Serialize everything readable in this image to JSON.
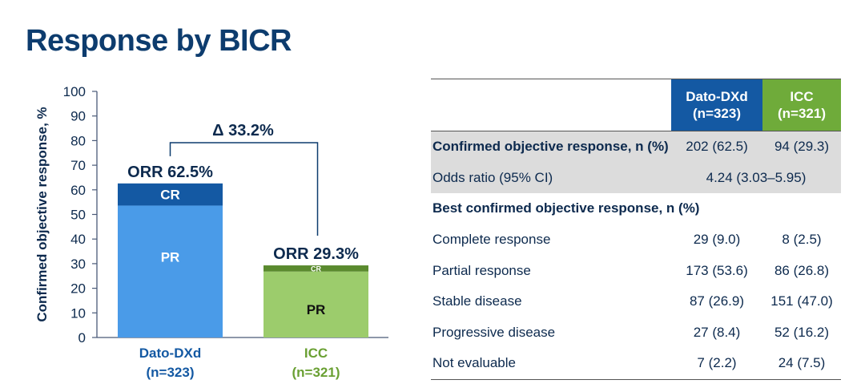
{
  "title": "Response by BICR",
  "chart_data": {
    "type": "bar",
    "stacked": true,
    "ylabel": "Confirmed objective response, %",
    "ylim": [
      0,
      100
    ],
    "yticks": [
      0,
      10,
      20,
      30,
      40,
      50,
      60,
      70,
      80,
      90,
      100
    ],
    "categories": [
      {
        "name": "Dato-DXd",
        "n": "(n=323)",
        "color_pr": "#4a9be8",
        "color_cr": "#1459a3",
        "label_color": "#1459a3",
        "orr_label": "ORR 62.5%"
      },
      {
        "name": "ICC",
        "n": "(n=321)",
        "color_pr": "#9ccc6c",
        "color_cr": "#5a8a2e",
        "label_color": "#6aa033",
        "orr_label": "ORR 29.3%"
      }
    ],
    "series": [
      {
        "name": "PR",
        "values": [
          53.6,
          26.8
        ]
      },
      {
        "name": "CR",
        "values": [
          9.0,
          2.5
        ]
      }
    ],
    "delta_label": "Δ 33.2%",
    "grid": false
  },
  "table": {
    "headers": [
      {
        "line1": "Dato-DXd",
        "line2": "(n=323)",
        "color": "#1459a3"
      },
      {
        "line1": "ICC",
        "line2": "(n=321)",
        "color": "#6fab3a"
      }
    ],
    "rows": [
      {
        "label": "Confirmed objective response, n (%)",
        "a": "202 (62.5)",
        "b": "94 (29.3)"
      },
      {
        "label": "Odds ratio (95% CI)",
        "merged": "4.24 (3.03–5.95)"
      },
      {
        "label": "Best confirmed objective response, n (%)"
      },
      {
        "label": "Complete response",
        "a": "29 (9.0)",
        "b": "8 (2.5)"
      },
      {
        "label": "Partial response",
        "a": "173 (53.6)",
        "b": "86 (26.8)"
      },
      {
        "label": "Stable disease",
        "a": "87 (26.9)",
        "b": "151 (47.0)"
      },
      {
        "label": "Progressive disease",
        "a": "27 (8.4)",
        "b": "52 (16.2)"
      },
      {
        "label": "Not evaluable",
        "a": "7 (2.2)",
        "b": "24 (7.5)"
      }
    ]
  }
}
